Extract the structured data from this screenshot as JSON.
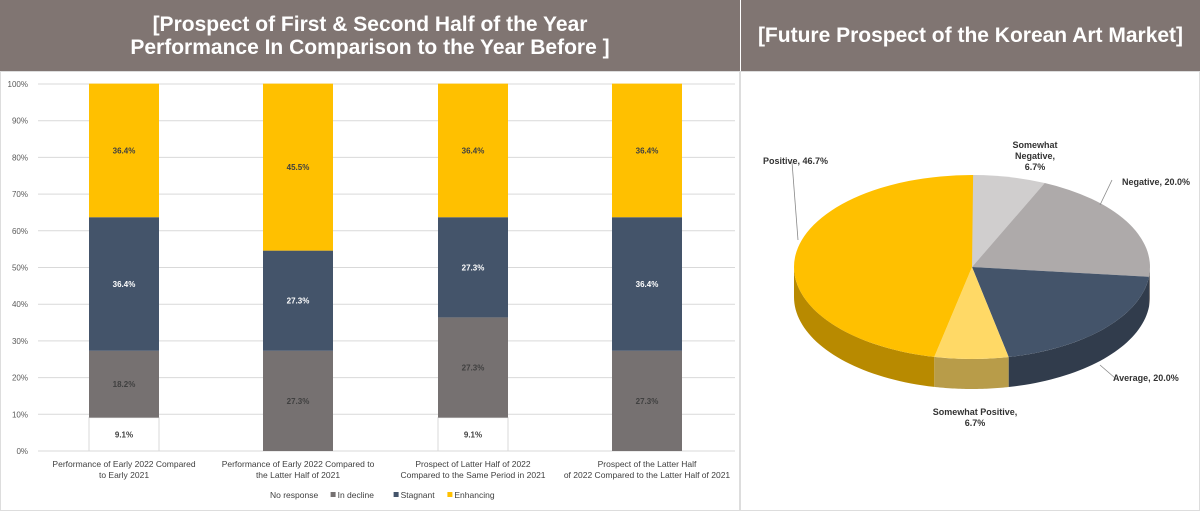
{
  "titles": {
    "left": "[Prospect of First & Second Half of the Year\nPerformance In Comparison to the Year Before ]",
    "right": "[Future Prospect of the Korean Art Market]"
  },
  "chart_data": [
    {
      "type": "bar",
      "stacked": true,
      "title": "[Prospect of First & Second Half of the Year Performance In Comparison to the Year Before ]",
      "categories": [
        "Performance of Early 2022 Compared to Early 2021",
        "Performance of Early 2022 Compared to the Latter Half of 2021",
        "Prospect of Latter Half of 2022 Compared to the Same Period in 2021",
        "Prospect of the Latter Half of 2022 Compared to the Latter Half of 2021"
      ],
      "series": [
        {
          "name": "No response",
          "color": "#ffffff",
          "values": [
            9.1,
            0,
            9.1,
            0
          ]
        },
        {
          "name": "In decline",
          "color": "#767171",
          "values": [
            18.2,
            27.3,
            27.3,
            27.3
          ]
        },
        {
          "name": "Stagnant",
          "color": "#44546a",
          "values": [
            36.4,
            27.3,
            27.3,
            36.4
          ]
        },
        {
          "name": "Enhancing",
          "color": "#ffc000",
          "values": [
            36.4,
            45.5,
            36.4,
            36.4
          ]
        }
      ],
      "yticks": [
        "0%",
        "10%",
        "20%",
        "30%",
        "40%",
        "50%",
        "60%",
        "70%",
        "80%",
        "90%",
        "100%"
      ],
      "ylim": [
        0,
        100
      ],
      "legend": "bottom",
      "grid": true
    },
    {
      "type": "pie",
      "title": "[Future Prospect of the Korean Art Market]",
      "slices": [
        {
          "label": "Somewhat Negative, 6.7%",
          "value": 6.7,
          "color": "#d0cece"
        },
        {
          "label": "Negative, 20.0%",
          "value": 20.0,
          "color": "#aeaaaa"
        },
        {
          "label": "Average, 20.0%",
          "value": 20.0,
          "color": "#44546a"
        },
        {
          "label": "Somewhat Positive, 6.7%",
          "value": 6.7,
          "color": "#ffd966"
        },
        {
          "label": "Positive, 46.7%",
          "value": 46.7,
          "color": "#ffc000"
        }
      ]
    }
  ]
}
